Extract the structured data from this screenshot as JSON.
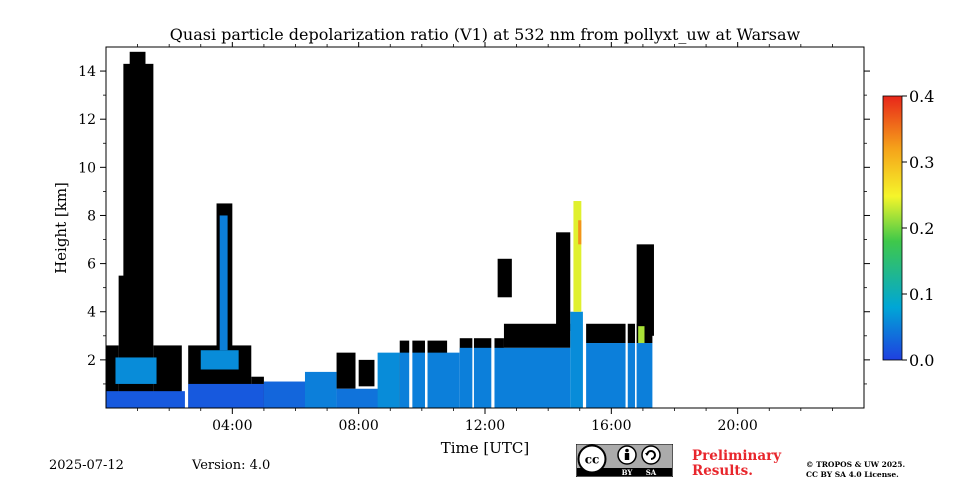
{
  "footer": {
    "date": "2025-07-12",
    "version": "Version: 4.0",
    "preliminary_line1": "Preliminary",
    "preliminary_line2": "Results.",
    "copyright_line1": "© TROPOS & UW 2025.",
    "copyright_line2": "CC BY SA 4.0 License.",
    "license_badge": {
      "cc": "cc",
      "by": "BY",
      "sa": "SA"
    }
  },
  "chart_data": {
    "type": "heatmap",
    "title": "Quasi particle depolarization ratio (V1) at 532 nm from pollyxt_uw at Warsaw",
    "xlabel": "Time [UTC]",
    "ylabel": "Height [km]",
    "xlim_hours": [
      0,
      24
    ],
    "ylim_km": [
      0,
      15
    ],
    "x_ticks": [
      {
        "value": 4,
        "label": "04:00"
      },
      {
        "value": 8,
        "label": "08:00"
      },
      {
        "value": 12,
        "label": "12:00"
      },
      {
        "value": 16,
        "label": "16:00"
      },
      {
        "value": 20,
        "label": "20:00"
      }
    ],
    "y_ticks": [
      {
        "value": 2,
        "label": "2"
      },
      {
        "value": 4,
        "label": "4"
      },
      {
        "value": 6,
        "label": "6"
      },
      {
        "value": 8,
        "label": "8"
      },
      {
        "value": 10,
        "label": "10"
      },
      {
        "value": 12,
        "label": "12"
      },
      {
        "value": 14,
        "label": "14"
      }
    ],
    "colorbar": {
      "range": [
        0.0,
        0.4
      ],
      "ticks": [
        {
          "value": 0.0,
          "label": "0.0"
        },
        {
          "value": 0.1,
          "label": "0.1"
        },
        {
          "value": 0.2,
          "label": "0.2"
        },
        {
          "value": 0.3,
          "label": "0.3"
        },
        {
          "value": 0.4,
          "label": "0.4"
        }
      ],
      "stops": [
        "#1f3fe0",
        "#00a6d6",
        "#3fc84a",
        "#f5f52a",
        "#f5a31a",
        "#e8261a"
      ]
    },
    "masked_regions": [
      {
        "t0": 0.0,
        "t1": 0.4,
        "h0": 0.0,
        "h1": 2.6
      },
      {
        "t0": 0.4,
        "t1": 1.0,
        "h0": 0.0,
        "h1": 5.5
      },
      {
        "t0": 0.55,
        "t1": 1.5,
        "h0": 0.0,
        "h1": 14.3
      },
      {
        "t0": 0.75,
        "t1": 1.25,
        "h0": 0.0,
        "h1": 14.8
      },
      {
        "t0": 1.5,
        "t1": 2.4,
        "h0": 0.0,
        "h1": 2.6
      },
      {
        "t0": 2.6,
        "t1": 4.6,
        "h0": 0.0,
        "h1": 2.6
      },
      {
        "t0": 3.5,
        "t1": 4.0,
        "h0": 0.0,
        "h1": 8.5
      },
      {
        "t0": 4.6,
        "t1": 5.0,
        "h0": 0.0,
        "h1": 1.3
      },
      {
        "t0": 7.3,
        "t1": 7.9,
        "h0": 0.8,
        "h1": 2.3
      },
      {
        "t0": 8.0,
        "t1": 8.5,
        "h0": 0.9,
        "h1": 2.0
      },
      {
        "t0": 9.3,
        "t1": 10.8,
        "h0": 0.0,
        "h1": 2.8
      },
      {
        "t0": 11.2,
        "t1": 12.6,
        "h0": 2.3,
        "h1": 2.9
      },
      {
        "t0": 12.4,
        "t1": 12.85,
        "h0": 4.6,
        "h1": 6.2
      },
      {
        "t0": 12.6,
        "t1": 14.7,
        "h0": 2.5,
        "h1": 3.5
      },
      {
        "t0": 14.25,
        "t1": 14.7,
        "h0": 3.2,
        "h1": 7.3
      },
      {
        "t0": 15.2,
        "t1": 17.3,
        "h0": 2.7,
        "h1": 3.5
      },
      {
        "t0": 16.8,
        "t1": 17.35,
        "h0": 3.0,
        "h1": 6.8
      }
    ],
    "depol_regions": [
      {
        "t0": 0.0,
        "t1": 2.5,
        "h0": 0.0,
        "h1": 0.7,
        "v": 0.02
      },
      {
        "t0": 0.3,
        "t1": 1.6,
        "h0": 1.0,
        "h1": 2.1,
        "v": 0.06
      },
      {
        "t0": 2.6,
        "t1": 5.0,
        "h0": 0.0,
        "h1": 1.0,
        "v": 0.02
      },
      {
        "t0": 3.0,
        "t1": 4.2,
        "h0": 1.6,
        "h1": 2.4,
        "v": 0.06
      },
      {
        "t0": 3.6,
        "t1": 3.85,
        "h0": 2.4,
        "h1": 8.0,
        "v": 0.05
      },
      {
        "t0": 5.0,
        "t1": 7.2,
        "h0": 0.0,
        "h1": 1.1,
        "v": 0.03
      },
      {
        "t0": 6.3,
        "t1": 7.3,
        "h0": 0.0,
        "h1": 1.5,
        "v": 0.05
      },
      {
        "t0": 7.3,
        "t1": 9.2,
        "h0": 0.0,
        "h1": 0.8,
        "v": 0.04
      },
      {
        "t0": 8.6,
        "t1": 9.3,
        "h0": 0.0,
        "h1": 2.3,
        "v": 0.06
      },
      {
        "t0": 9.3,
        "t1": 11.2,
        "h0": 0.0,
        "h1": 2.3,
        "v": 0.05
      },
      {
        "t0": 11.2,
        "t1": 14.7,
        "h0": 0.0,
        "h1": 2.5,
        "v": 0.05
      },
      {
        "t0": 14.7,
        "t1": 15.15,
        "h0": 0.0,
        "h1": 4.0,
        "v": 0.06
      },
      {
        "t0": 14.8,
        "t1": 15.05,
        "h0": 4.0,
        "h1": 8.6,
        "v": 0.24
      },
      {
        "t0": 14.95,
        "t1": 15.05,
        "h0": 6.8,
        "h1": 7.8,
        "v": 0.33
      },
      {
        "t0": 15.2,
        "t1": 17.3,
        "h0": 0.0,
        "h1": 2.7,
        "v": 0.05
      },
      {
        "t0": 16.85,
        "t1": 17.05,
        "h0": 2.7,
        "h1": 3.4,
        "v": 0.22
      }
    ],
    "gaps": [
      {
        "t0": 2.5,
        "t1": 2.6
      },
      {
        "t0": 9.6,
        "t1": 9.7
      },
      {
        "t0": 10.1,
        "t1": 10.18
      },
      {
        "t0": 11.6,
        "t1": 11.65
      },
      {
        "t0": 12.2,
        "t1": 12.3
      },
      {
        "t0": 15.1,
        "t1": 15.2
      },
      {
        "t0": 16.45,
        "t1": 16.52
      },
      {
        "t0": 16.75,
        "t1": 16.8
      }
    ],
    "data_end_hour": 17.35
  }
}
